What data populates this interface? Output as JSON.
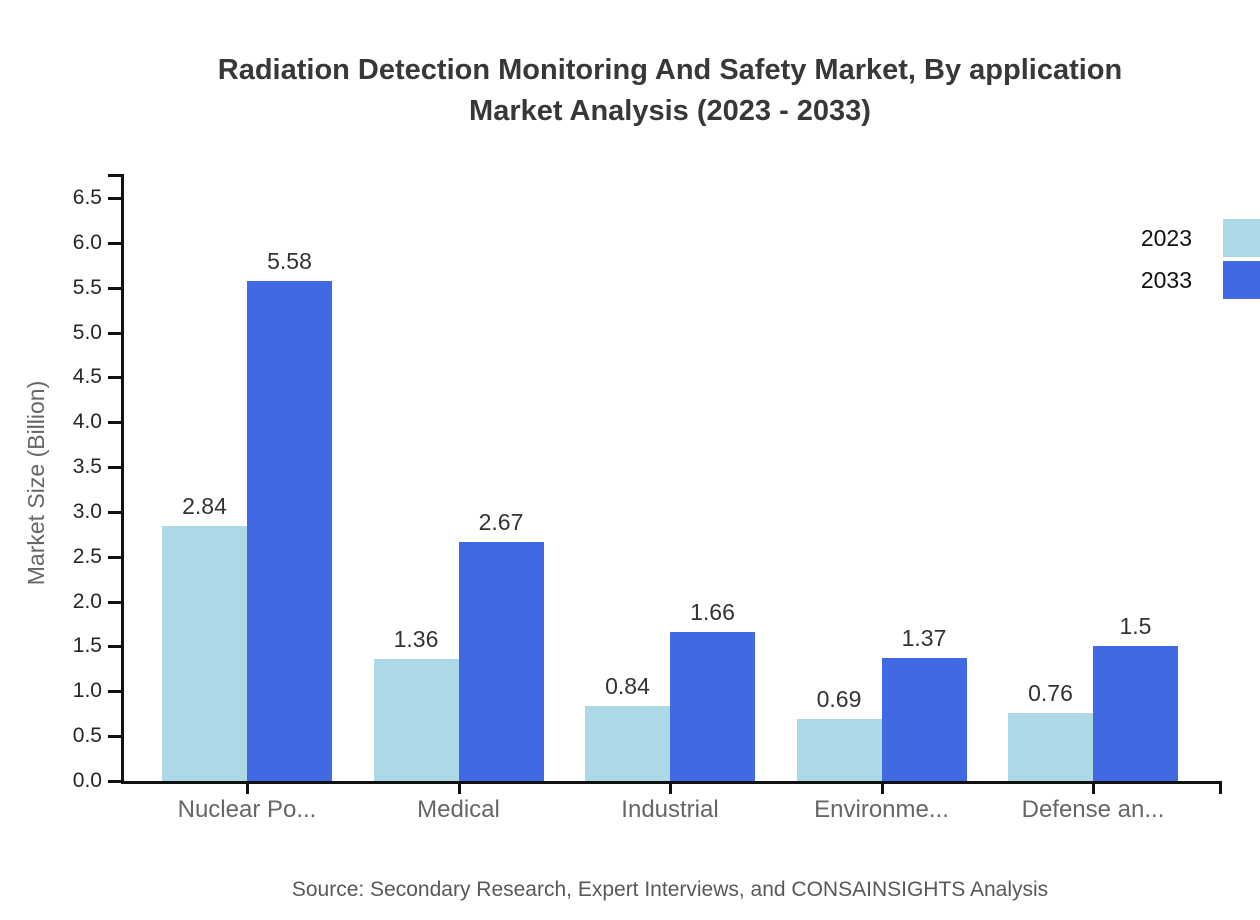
{
  "chart_data": {
    "type": "bar",
    "title": "Radiation Detection Monitoring And Safety Market, By application Market Analysis (2023 - 2033)",
    "title_lines": [
      "Radiation Detection Monitoring And Safety Market, By application",
      "Market Analysis (2023 - 2033)"
    ],
    "categories": [
      "Nuclear Po...",
      "Medical",
      "Industrial",
      "Environme...",
      "Defense an..."
    ],
    "series": [
      {
        "name": "2023",
        "color": "#ADD8E6",
        "values": [
          2.84,
          1.36,
          0.84,
          0.69,
          0.76
        ],
        "labels": [
          "2.84",
          "1.36",
          "0.84",
          "0.69",
          "0.76"
        ]
      },
      {
        "name": "2033",
        "color": "#4169E1",
        "values": [
          5.58,
          2.67,
          1.66,
          1.37,
          1.5
        ],
        "labels": [
          "5.58",
          "2.67",
          "1.66",
          "1.37",
          "1.5"
        ]
      }
    ],
    "xlabel": "",
    "ylabel": "Market Size (Billion)",
    "ylim": [
      0,
      6.5
    ],
    "ytick_step": 0.5,
    "grid": false,
    "legend_position": "top-right",
    "source": "Source: Secondary Research, Expert Interviews, and CONSAINSIGHTS Analysis"
  }
}
